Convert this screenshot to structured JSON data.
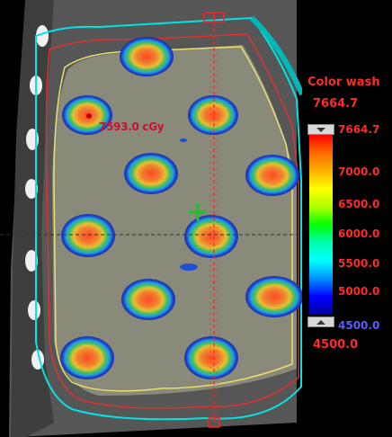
{
  "dose_annotation": "7593.0 cGy",
  "legend": {
    "title": "Color wash",
    "max_value": "7664.7",
    "min_value": "4500.0",
    "ticks": [
      "7664.7",
      "7000.0",
      "6500.0",
      "6000.0",
      "5500.0",
      "5000.0",
      "4500.0"
    ]
  },
  "colors": {
    "body_contour": "#00e5e5",
    "ptv_contour": "#e03030",
    "target_contour": "#e8e070",
    "crosshair": "#ff2020",
    "isocenter_marker": "#20c030"
  }
}
